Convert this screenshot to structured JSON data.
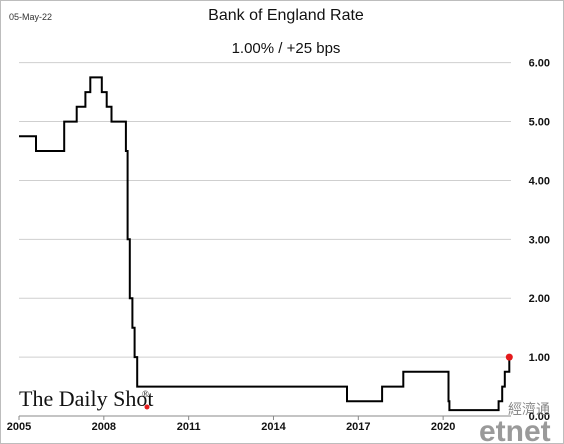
{
  "header": {
    "date_stamp": "05-May-22",
    "title": "Bank of England Rate",
    "subtitle": "1.00%  /  +25 bps"
  },
  "watermarks": {
    "daily_shot": "The Daily Shot",
    "registered_mark": "®",
    "etnet_chinese": "經濟通",
    "etnet_latin": "etnet"
  },
  "colors": {
    "line": "#000000",
    "highlight_point": "#e41a1c",
    "grid": "#cfcfcf"
  },
  "chart_data": {
    "type": "line",
    "title": "Bank of England Rate",
    "subtitle": "1.00%  /  +25 bps",
    "xlabel": "",
    "ylabel": "",
    "x_ticks": [
      "2005",
      "2008",
      "2011",
      "2014",
      "2017",
      "2020"
    ],
    "y_ticks": [
      "0.00",
      "1.00",
      "2.00",
      "3.00",
      "4.00",
      "5.00",
      "6.00"
    ],
    "xlim": [
      2005.0,
      2022.4
    ],
    "ylim": [
      0,
      6.3
    ],
    "y_axis_side": "right",
    "grid": "horizontal",
    "step": true,
    "series": [
      {
        "points": [
          [
            2005.0,
            4.75
          ],
          [
            2005.6,
            4.5
          ],
          [
            2006.6,
            5.0
          ],
          [
            2006.85,
            5.0
          ],
          [
            2007.04,
            5.25
          ],
          [
            2007.35,
            5.5
          ],
          [
            2007.52,
            5.75
          ],
          [
            2007.93,
            5.5
          ],
          [
            2008.1,
            5.25
          ],
          [
            2008.27,
            5.0
          ],
          [
            2008.78,
            4.5
          ],
          [
            2008.84,
            3.0
          ],
          [
            2008.92,
            2.0
          ],
          [
            2009.01,
            1.5
          ],
          [
            2009.09,
            1.0
          ],
          [
            2009.18,
            0.5
          ],
          [
            2016.6,
            0.25
          ],
          [
            2017.84,
            0.5
          ],
          [
            2018.59,
            0.75
          ],
          [
            2020.19,
            0.25
          ],
          [
            2020.22,
            0.1
          ],
          [
            2021.96,
            0.25
          ],
          [
            2022.09,
            0.5
          ],
          [
            2022.18,
            0.75
          ],
          [
            2022.34,
            1.0
          ]
        ]
      }
    ],
    "highlight_last_point": true
  }
}
